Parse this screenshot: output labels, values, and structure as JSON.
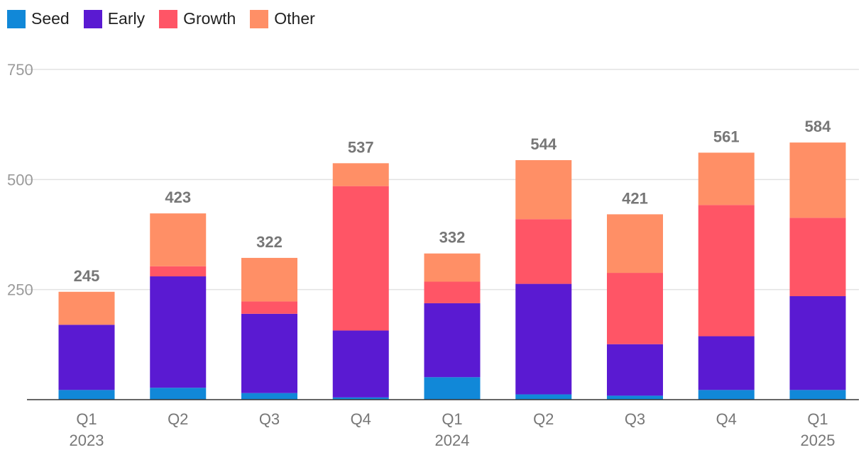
{
  "chart_data": {
    "type": "bar",
    "stacked": true,
    "title": "",
    "xlabel": "",
    "ylabel": "",
    "ylim": [
      0,
      750
    ],
    "yticks": [
      250,
      500,
      750
    ],
    "grid": true,
    "legend_position": "top-left",
    "categories": [
      "Q1",
      "Q2",
      "Q3",
      "Q4",
      "Q1",
      "Q2",
      "Q3",
      "Q4",
      "Q1"
    ],
    "year_labels": [
      "2023",
      "",
      "",
      "",
      "2024",
      "",
      "",
      "",
      "2025"
    ],
    "series": [
      {
        "name": "Seed",
        "color": "#1188d8",
        "values": [
          22,
          27,
          15,
          5,
          51,
          12,
          9,
          22,
          22
        ]
      },
      {
        "name": "Early",
        "color": "#5a1ad2",
        "values": [
          148,
          253,
          180,
          152,
          168,
          251,
          117,
          122,
          213
        ]
      },
      {
        "name": "Growth",
        "color": "#ff5566",
        "values": [
          0,
          23,
          28,
          328,
          49,
          147,
          162,
          298,
          178
        ]
      },
      {
        "name": "Other",
        "color": "#ff8f66",
        "values": [
          75,
          120,
          99,
          52,
          64,
          134,
          133,
          119,
          171
        ]
      }
    ],
    "totals": [
      "245",
      "423",
      "322",
      "537",
      "332",
      "544",
      "421",
      "561",
      "584"
    ]
  }
}
